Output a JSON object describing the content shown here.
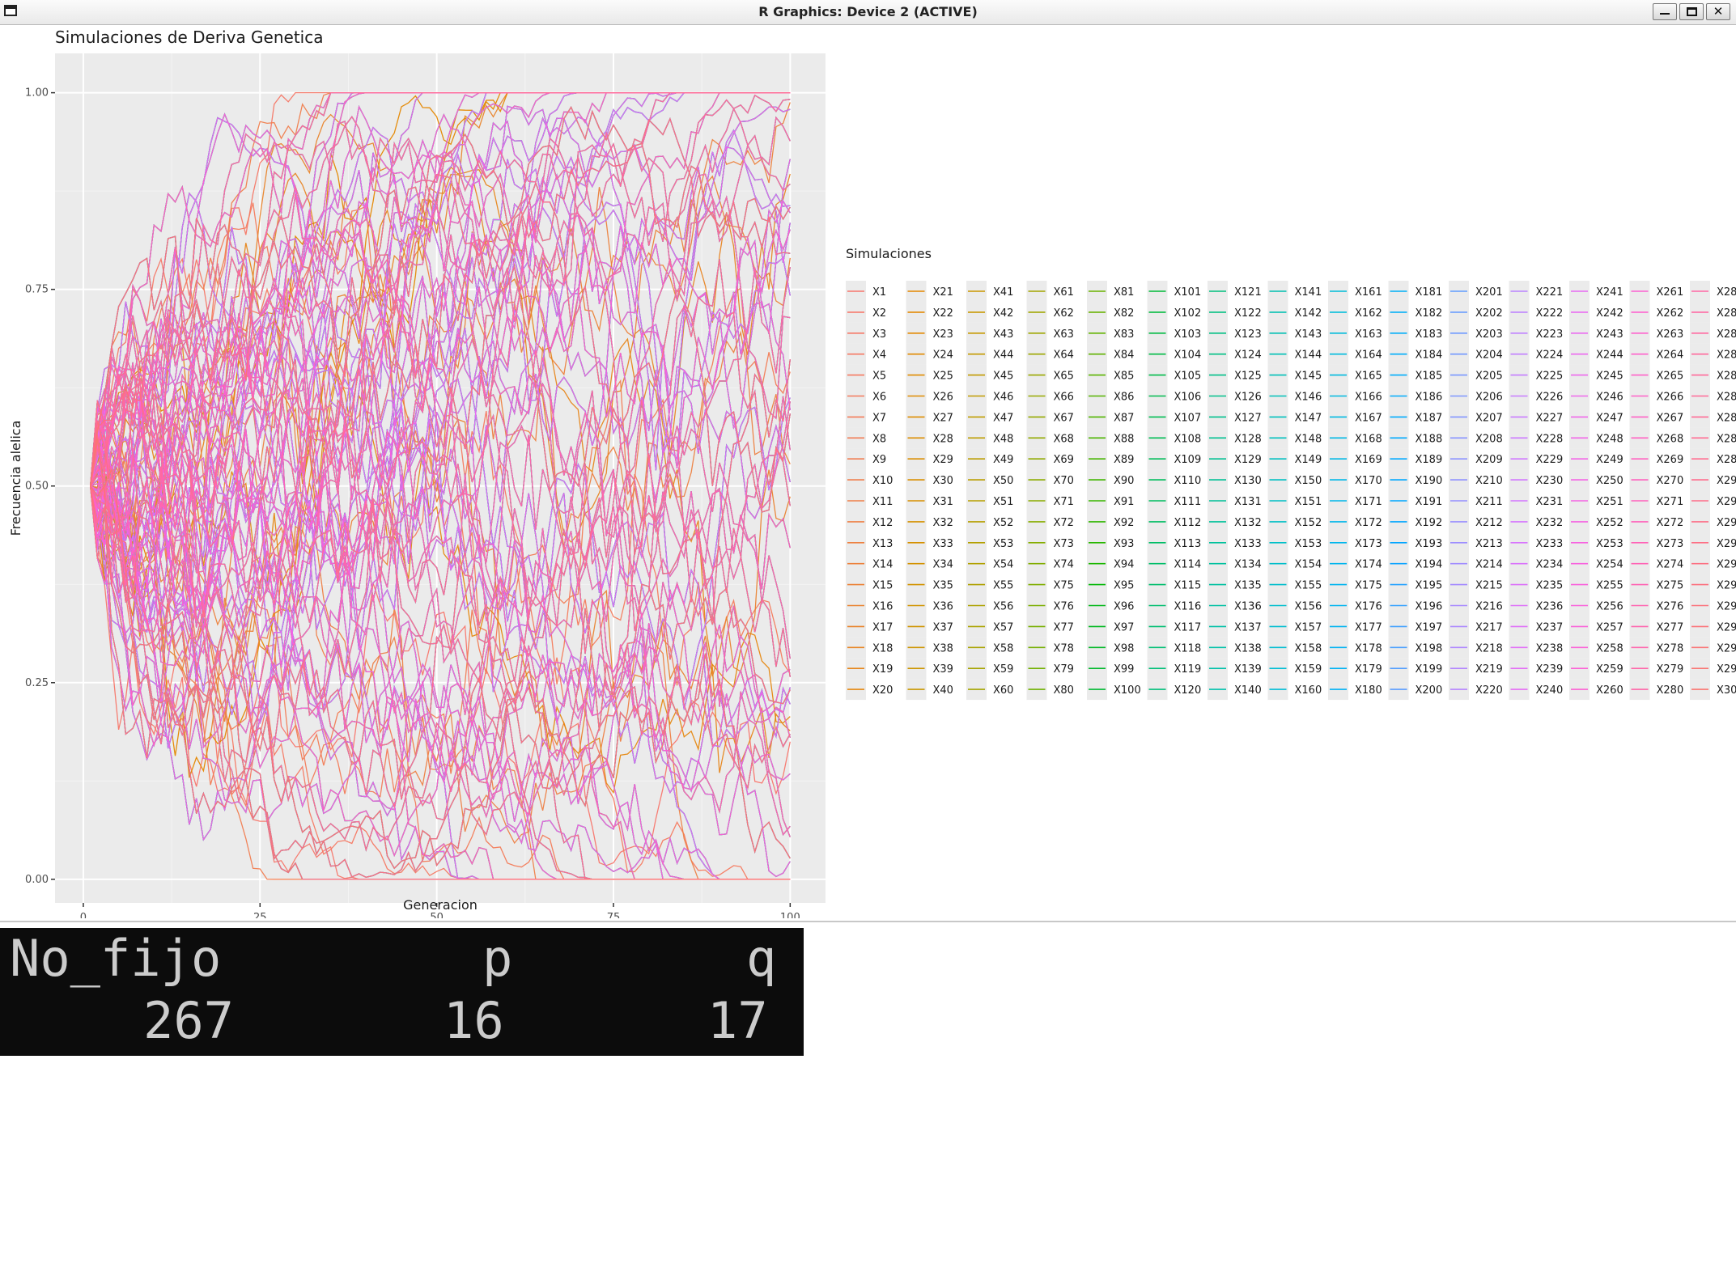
{
  "window": {
    "title": "R Graphics: Device 2 (ACTIVE)",
    "controls": [
      "minimize-icon",
      "maximize-icon",
      "close-icon"
    ]
  },
  "chart_data": {
    "type": "line",
    "title": "Simulaciones de Deriva Genetica",
    "xlabel": "Generacion",
    "ylabel": "Frecuencia alelica",
    "xlim": [
      -4,
      105
    ],
    "ylim": [
      -0.03,
      1.05
    ],
    "xticks": [
      0,
      25,
      50,
      75,
      100
    ],
    "xtick_labels": [
      "0",
      "25",
      "50",
      "75",
      "100"
    ],
    "yticks": [
      0,
      0.25,
      0.5,
      0.75,
      1
    ],
    "ytick_labels": [
      "0.00",
      "0.25",
      "0.50",
      "0.75",
      "1.00"
    ],
    "grid": true,
    "panel_background": "#ebebeb",
    "legend_title": "Simulaciones",
    "legend_position": "right",
    "n_series": 300,
    "series_prefix": "X",
    "generations": 100,
    "initial_frequency": 0.5,
    "series_summary": {
      "No_fijo": 267,
      "p": 16,
      "q": 17
    }
  },
  "console": {
    "headers": [
      "No_fijo",
      "p",
      "q"
    ],
    "values": [
      "267",
      "16",
      "17"
    ],
    "background": "#0c0c0c",
    "text_color": "#cccccc"
  }
}
